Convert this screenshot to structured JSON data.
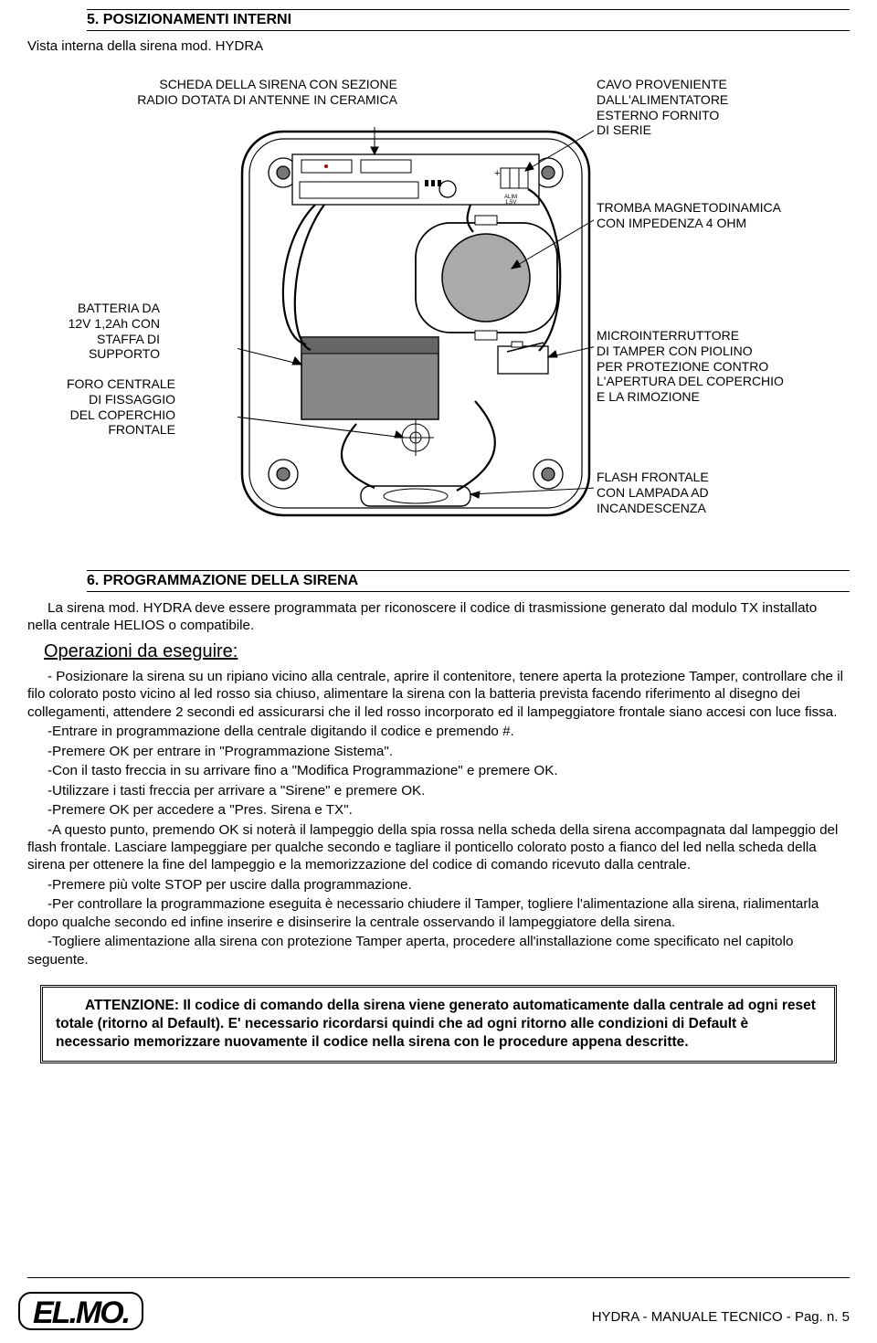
{
  "section5": {
    "title": "5. POSIZIONAMENTI INTERNI",
    "subtitle": "Vista interna della sirena mod. HYDRA"
  },
  "diagram": {
    "labels": {
      "topLeft": "SCHEDA DELLA SIRENA CON SEZIONE\nRADIO DOTATA DI ANTENNE IN CERAMICA",
      "topRight": "CAVO PROVENIENTE\nDALL'ALIMENTATORE\nESTERNO FORNITO\nDI SERIE",
      "speaker": "TROMBA MAGNETODINAMICA\nCON IMPEDENZA 4 OHM",
      "battery": "BATTERIA DA\n12V 1,2Ah CON\nSTAFFA DI\nSUPPORTO",
      "centerHole": "FORO CENTRALE\nDI FISSAGGIO\nDEL COPERCHIO\nFRONTALE",
      "tamper": "MICROINTERRUTTORE\nDI TAMPER CON PIOLINO\nPER PROTEZIONE  CONTRO\nL'APERTURA DEL COPERCHIO\nE LA RIMOZIONE",
      "flash": "FLASH FRONTALE\nCON LAMPADA AD\nINCANDESCENZA"
    },
    "pcbText": "ALIM\n1,5V"
  },
  "section6": {
    "title": "6. PROGRAMMAZIONE DELLA SIRENA",
    "intro": "La sirena mod. HYDRA deve essere programmata per riconoscere il codice di trasmissione generato dal modulo TX installato nella centrale HELIOS o compatibile.",
    "opsHeading": "Operazioni da eseguire:",
    "steps": [
      "- Posizionare la sirena su un ripiano vicino alla centrale, aprire il contenitore, tenere aperta la protezione Tamper, controllare che il filo colorato posto vicino al led rosso sia chiuso, alimentare la sirena con la batteria prevista facendo riferimento al disegno dei collegamenti, attendere 2 secondi ed assicurarsi che il led rosso incorporato ed il lampeggiatore frontale siano accesi con luce fissa.",
      "-Entrare in programmazione della centrale digitando il codice e premendo #.",
      "-Premere OK per entrare in \"Programmazione Sistema\".",
      "-Con il tasto freccia in su arrivare fino a \"Modifica Programmazione\" e premere OK.",
      "-Utilizzare i tasti freccia per arrivare a \"Sirene\" e premere OK.",
      "-Premere OK per accedere a \"Pres. Sirena e TX\".",
      "-A questo punto, premendo OK si noterà il lampeggio della spia rossa nella scheda della sirena accompagnata dal lampeggio del flash frontale. Lasciare lampeggiare per qualche secondo e tagliare il ponticello colorato posto a fianco del led nella scheda della sirena per ottenere la fine del lampeggio e la memorizzazione del codice di comando ricevuto dalla centrale.",
      "-Premere più volte STOP per uscire dalla programmazione.",
      "-Per controllare la programmazione eseguita è necessario chiudere il Tamper, togliere l'alimentazione alla sirena, rialimentarla dopo qualche secondo ed infine inserire e disinserire la centrale osservando il lampeggiatore della sirena.",
      "-Togliere alimentazione alla sirena con protezione Tamper aperta, procedere all'installazione come specificato nel capitolo seguente."
    ],
    "warning": "ATTENZIONE: Il codice di comando della sirena viene generato automaticamente dalla centrale ad ogni reset totale (ritorno al Default). E' necessario ricordarsi quindi che ad ogni ritorno alle condizioni di Default è necessario memorizzare nuovamente il codice nella sirena con le procedure appena descritte."
  },
  "footer": {
    "logo": "EL.MO.",
    "text": "HYDRA - MANUALE TECNICO - Pag. n. 5"
  },
  "colors": {
    "stroke": "#000000",
    "fillLight": "#ffffff",
    "fillGrey": "#a9a9a9",
    "fillDark": "#555555"
  }
}
